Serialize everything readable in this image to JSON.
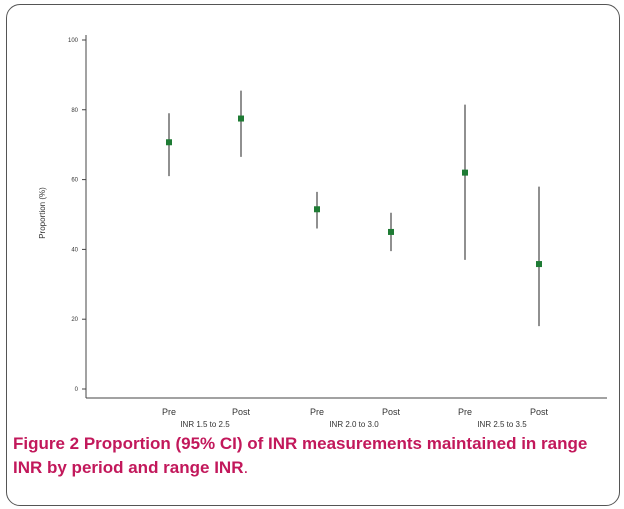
{
  "chart_data": {
    "type": "scatter",
    "subtype": "point-with-error-bars",
    "ylabel": "Proportion (%)",
    "ylim": [
      0,
      100
    ],
    "yticks": [
      0,
      20,
      40,
      60,
      80,
      100
    ],
    "grid": false,
    "marker_color": "#1e7b34",
    "categories": [
      "Pre",
      "Post",
      "Pre",
      "Post",
      "Pre",
      "Post"
    ],
    "groups": [
      "INR 1.5 to 2.5",
      "INR 2.0 to 3.0",
      "INR 2.5 to 3.5"
    ],
    "points": [
      {
        "label": "Pre",
        "group": "INR 1.5 to 2.5",
        "value": 70.7,
        "lower": 61.0,
        "upper": 79.0
      },
      {
        "label": "Post",
        "group": "INR 1.5 to 2.5",
        "value": 77.5,
        "lower": 66.5,
        "upper": 85.5
      },
      {
        "label": "Pre",
        "group": "INR 2.0 to 3.0",
        "value": 51.5,
        "lower": 46.0,
        "upper": 56.5
      },
      {
        "label": "Post",
        "group": "INR 2.0 to 3.0",
        "value": 45.0,
        "lower": 39.5,
        "upper": 50.5
      },
      {
        "label": "Pre",
        "group": "INR 2.5 to 3.5",
        "value": 62.0,
        "lower": 37.0,
        "upper": 81.5
      },
      {
        "label": "Post",
        "group": "INR 2.5 to 3.5",
        "value": 35.8,
        "lower": 18.0,
        "upper": 58.0
      }
    ]
  },
  "caption": {
    "label": "Figure 2",
    "text": " Proportion (95% CI) of INR measurements maintained in range INR by period and range INR",
    "end": "."
  }
}
